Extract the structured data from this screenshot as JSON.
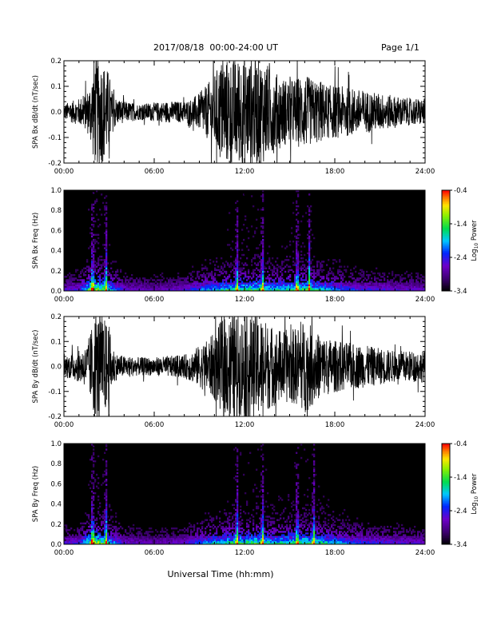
{
  "header": {
    "title": "2017/08/18  00:00-24:00 UT",
    "page": "Page 1/1"
  },
  "xlabel": "Universal Time (hh:mm)",
  "colorbar_label_prefix": "Log",
  "colorbar_label_subscript": "10",
  "colorbar_label_suffix": " Power",
  "chart_data": [
    {
      "type": "line",
      "ylabel": "SPA Bx dB/dt (nT/sec)",
      "xlim": [
        0,
        24
      ],
      "ylim": [
        -0.2,
        0.2
      ],
      "xticks": [
        "00:00",
        "06:00",
        "12:00",
        "18:00",
        "24:00"
      ],
      "yticks": [
        "-0.2",
        "-0.1",
        "0.0",
        "0.1",
        "0.2"
      ],
      "color": "#000000",
      "envelope_x": [
        0,
        0.5,
        1,
        1.5,
        1.8,
        2,
        2.5,
        3,
        3.2,
        3.5,
        4,
        5,
        6,
        7,
        8,
        8.5,
        9,
        9.5,
        10,
        10.5,
        11,
        11.5,
        12,
        12.5,
        13,
        13.5,
        14,
        14.5,
        15,
        15.5,
        16,
        16.5,
        17,
        17.5,
        18,
        19,
        20,
        21,
        22,
        23,
        24
      ],
      "envelope_amp": [
        0.03,
        0.04,
        0.05,
        0.07,
        0.12,
        0.2,
        0.2,
        0.15,
        0.08,
        0.05,
        0.04,
        0.03,
        0.035,
        0.04,
        0.04,
        0.05,
        0.07,
        0.1,
        0.14,
        0.2,
        0.2,
        0.2,
        0.2,
        0.2,
        0.2,
        0.18,
        0.15,
        0.13,
        0.12,
        0.13,
        0.14,
        0.12,
        0.12,
        0.1,
        0.1,
        0.09,
        0.08,
        0.07,
        0.06,
        0.05,
        0.05
      ]
    },
    {
      "type": "heatmap",
      "ylabel": "SPA Bx Freq (Hz)",
      "xlim": [
        0,
        24
      ],
      "ylim": [
        0,
        1.0
      ],
      "xticks": [
        "00:00",
        "06:00",
        "12:00",
        "18:00",
        "24:00"
      ],
      "yticks": [
        "0.0",
        "0.2",
        "0.4",
        "0.6",
        "0.8",
        "1.0"
      ],
      "colorbar": {
        "min": -3.4,
        "max": -0.4,
        "ticks": [
          "-3.4",
          "-2.4",
          "-1.4",
          "-0.4"
        ]
      },
      "activity_x": [
        0,
        1,
        2,
        2.5,
        3,
        4,
        6,
        8,
        9,
        10,
        11,
        12,
        13,
        14,
        15,
        16,
        17,
        18,
        19,
        20,
        21,
        22,
        23,
        24
      ],
      "activity_level": [
        0.3,
        0.35,
        0.9,
        0.75,
        0.6,
        0.3,
        0.25,
        0.3,
        0.45,
        0.55,
        0.65,
        0.7,
        0.7,
        0.6,
        0.65,
        0.7,
        0.6,
        0.5,
        0.4,
        0.35,
        0.35,
        0.3,
        0.3,
        0.3
      ],
      "bright_lines_x": [
        1.9,
        2.8,
        11.5,
        13.2,
        15.5,
        16.3
      ]
    },
    {
      "type": "line",
      "ylabel": "SPA By dB/dt (nT/sec)",
      "xlim": [
        0,
        24
      ],
      "ylim": [
        -0.2,
        0.2
      ],
      "xticks": [
        "00:00",
        "06:00",
        "12:00",
        "18:00",
        "24:00"
      ],
      "yticks": [
        "-0.2",
        "-0.1",
        "0.0",
        "0.1",
        "0.2"
      ],
      "color": "#000000",
      "envelope_x": [
        0,
        0.5,
        1,
        1.5,
        1.8,
        2,
        2.5,
        3,
        3.2,
        3.5,
        4,
        5,
        6,
        7,
        8,
        8.5,
        9,
        9.5,
        10,
        10.5,
        11,
        11.5,
        12,
        12.5,
        13,
        13.5,
        14,
        14.5,
        15,
        15.5,
        16,
        16.5,
        17,
        17.5,
        18,
        19,
        20,
        21,
        22,
        23,
        24
      ],
      "envelope_amp": [
        0.04,
        0.05,
        0.06,
        0.08,
        0.14,
        0.2,
        0.2,
        0.16,
        0.08,
        0.05,
        0.04,
        0.035,
        0.035,
        0.04,
        0.045,
        0.06,
        0.08,
        0.1,
        0.13,
        0.18,
        0.2,
        0.2,
        0.2,
        0.2,
        0.2,
        0.17,
        0.15,
        0.14,
        0.14,
        0.15,
        0.18,
        0.15,
        0.12,
        0.11,
        0.1,
        0.09,
        0.08,
        0.07,
        0.06,
        0.06,
        0.06
      ]
    },
    {
      "type": "heatmap",
      "ylabel": "SPA By Freq (Hz)",
      "xlim": [
        0,
        24
      ],
      "ylim": [
        0,
        1.0
      ],
      "xticks": [
        "00:00",
        "06:00",
        "12:00",
        "18:00",
        "24:00"
      ],
      "yticks": [
        "0.0",
        "0.2",
        "0.4",
        "0.6",
        "0.8",
        "1.0"
      ],
      "colorbar": {
        "min": -3.4,
        "max": -0.4,
        "ticks": [
          "-3.4",
          "-2.4",
          "-1.4",
          "-0.4"
        ]
      },
      "activity_x": [
        0,
        1,
        2,
        2.5,
        3,
        4,
        6,
        8,
        9,
        10,
        11,
        12,
        13,
        14,
        15,
        16,
        17,
        18,
        19,
        20,
        21,
        22,
        23,
        24
      ],
      "activity_level": [
        0.3,
        0.35,
        0.9,
        0.75,
        0.6,
        0.3,
        0.25,
        0.3,
        0.45,
        0.55,
        0.65,
        0.7,
        0.7,
        0.6,
        0.65,
        0.7,
        0.65,
        0.55,
        0.45,
        0.4,
        0.35,
        0.35,
        0.3,
        0.3
      ],
      "bright_lines_x": [
        1.9,
        2.8,
        11.5,
        13.2,
        15.5,
        16.6
      ]
    }
  ]
}
